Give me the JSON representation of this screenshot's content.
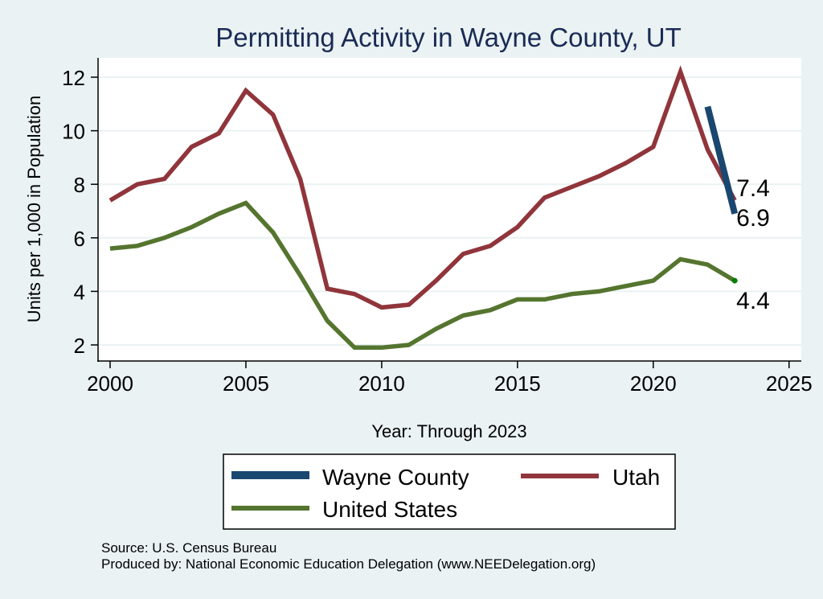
{
  "chart_data": {
    "type": "line",
    "title": "Permitting Activity in Wayne County, UT",
    "xlabel": "Year: Through 2023",
    "ylabel": "Units per 1,000 in Population",
    "xlim": [
      2000,
      2025
    ],
    "ylim": [
      1.3,
      12.75
    ],
    "xticks": [
      2000,
      2005,
      2010,
      2015,
      2020,
      2025
    ],
    "yticks": [
      2,
      4,
      6,
      8,
      10,
      12
    ],
    "grid": "horizontal",
    "legend_position": "bottom",
    "series": [
      {
        "name": "Wayne County",
        "color": "#1a476f",
        "x": [
          2022,
          2023
        ],
        "values": [
          10.9,
          6.9
        ],
        "end_label": "6.9"
      },
      {
        "name": "Utah",
        "color": "#90353b",
        "x": [
          2000,
          2001,
          2002,
          2003,
          2004,
          2005,
          2006,
          2007,
          2008,
          2009,
          2010,
          2011,
          2012,
          2013,
          2014,
          2015,
          2016,
          2017,
          2018,
          2019,
          2020,
          2021,
          2022,
          2023
        ],
        "values": [
          7.4,
          8.0,
          8.2,
          9.4,
          9.9,
          11.5,
          10.6,
          8.2,
          4.1,
          3.9,
          3.4,
          3.5,
          4.4,
          5.4,
          5.7,
          6.4,
          7.5,
          7.9,
          8.3,
          8.8,
          9.4,
          12.2,
          9.3,
          7.4
        ],
        "end_label": "7.4"
      },
      {
        "name": "United States",
        "color": "#55752f",
        "x": [
          2000,
          2001,
          2002,
          2003,
          2004,
          2005,
          2006,
          2007,
          2008,
          2009,
          2010,
          2011,
          2012,
          2013,
          2014,
          2015,
          2016,
          2017,
          2018,
          2019,
          2020,
          2021,
          2022,
          2023
        ],
        "values": [
          5.6,
          5.7,
          6.0,
          6.4,
          6.9,
          7.3,
          6.2,
          4.6,
          2.9,
          1.9,
          1.9,
          2.0,
          2.6,
          3.1,
          3.3,
          3.7,
          3.7,
          3.9,
          4.0,
          4.2,
          4.4,
          5.2,
          5.0,
          4.4
        ],
        "end_label": "4.4"
      }
    ],
    "legend": [
      {
        "name": "Wayne County",
        "color": "#1a476f"
      },
      {
        "name": "Utah",
        "color": "#90353b"
      },
      {
        "name": "United States",
        "color": "#55752f"
      }
    ],
    "notes": [
      "Source: U.S. Census Bureau",
      "Produced by: National Economic Education Delegation (www.NEEDelegation.org)"
    ]
  }
}
